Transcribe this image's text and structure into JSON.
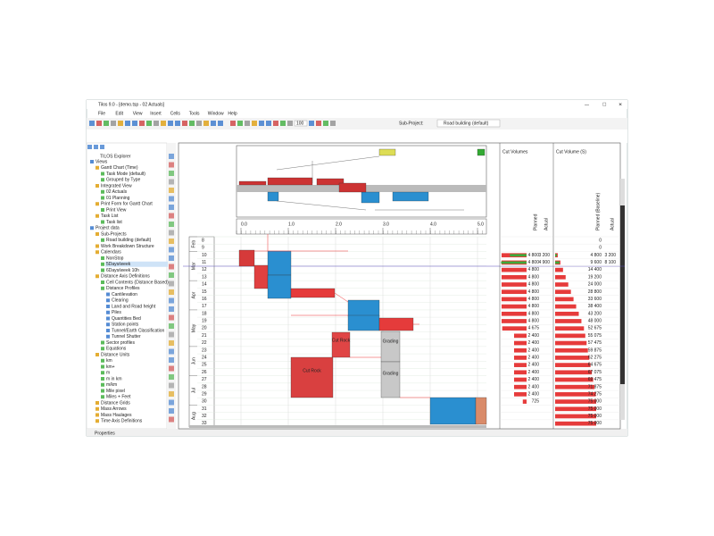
{
  "window": {
    "title": "Tilos 9.0 - [demo.tsp - 02 Actuals]",
    "menu": [
      "File",
      "Edit",
      "View",
      "Insert",
      "Cells",
      "Tools",
      "Window",
      "Help"
    ],
    "toolbar": {
      "zoom": "100",
      "sub_project_label": "Sub-Project:",
      "sub_project": "Road building (default)"
    }
  },
  "explorer": {
    "title": "TILOS Explorer",
    "items": [
      "Views",
      "Gantt Chart (Time)",
      "Task Mode (default)",
      "Grouped by Type",
      "Integrated View",
      "02 Actuals",
      "01 Planning",
      "Print Form for Gantt Chart",
      "Print View",
      "Task List",
      "Task list",
      "Project data",
      "Sub-Projects",
      "Road building (default)",
      "Work Breakdown Structure",
      "Calendars",
      "NonStop",
      "5Days/week",
      "6Days/week 10h",
      "Distance Axis Definitions",
      "Cell Contents (Distance Based)",
      "Distance Profiles",
      "Cantilevation",
      "Clearing",
      "Land and Road height",
      "Piles",
      "Quantities Bed",
      "Station points",
      "Tunnel/Earth Classification",
      "Tunnel Shutter",
      "Sector profiles",
      "Equations",
      "Distance Units",
      "km",
      "km+",
      "m",
      "m in km",
      "m/km",
      "Mile pixel",
      "Miles + Feet",
      "Distance Grids",
      "Mass Arrows",
      "Mass Haulages",
      "Time Axis Definitions"
    ],
    "footer": "Properties"
  },
  "time_distance": {
    "months": [
      "Feb",
      "Mar",
      "Apr",
      "May",
      "Jun",
      "Jul",
      "Aug"
    ],
    "weeks": [
      8,
      9,
      10,
      11,
      12,
      13,
      14,
      15,
      16,
      17,
      18,
      19,
      20,
      21,
      22,
      23,
      24,
      25,
      26,
      27,
      28,
      29,
      30,
      31,
      32,
      33
    ],
    "distance_ticks": [
      "0.0",
      "1.0",
      "2.0",
      "3.0",
      "4.0",
      "5.0"
    ],
    "activities": [
      "Cut Rock",
      "Grading",
      "Grading",
      "Cut Rock"
    ]
  },
  "cut_volumes": {
    "title": "Cut Volumes",
    "columns": [
      "Planned",
      "Actual"
    ],
    "planned": {
      "values": [
        null,
        null,
        4800,
        4800,
        4800,
        4800,
        4800,
        4800,
        4800,
        4800,
        4800,
        4800,
        4675,
        2400,
        2400,
        2400,
        2400,
        2400,
        2400,
        2400,
        2400,
        2400,
        725,
        null,
        null,
        null
      ],
      "value_labels": [
        null,
        null,
        "4 800",
        "4 800",
        "4 800",
        "4 800",
        "4 800",
        "4 800",
        "4 800",
        "4 800",
        "4 800",
        "4 800",
        "4 675",
        "2 400",
        "2 400",
        "2 400",
        "2 400",
        "2 400",
        "2 400",
        "2 400",
        "2 400",
        "2 400",
        "725",
        null,
        null,
        null
      ]
    },
    "actual": {
      "values": [
        null,
        null,
        3200,
        4900,
        null,
        null,
        null,
        null,
        null,
        null,
        null,
        null,
        null,
        null,
        null,
        null,
        null,
        null,
        null,
        null,
        null,
        null,
        null,
        null,
        null,
        null
      ],
      "value_labels": [
        null,
        null,
        "3 200",
        "4 900",
        null,
        null,
        null,
        null,
        null,
        null,
        null,
        null,
        null,
        null,
        null,
        null,
        null,
        null,
        null,
        null,
        null,
        null,
        null,
        null,
        null,
        null
      ]
    }
  },
  "cut_volume_cumulative": {
    "title": "Cut Volume (S)",
    "columns": [
      "Planned (Baseline)",
      "Actual"
    ],
    "planned": {
      "values": [
        0,
        0,
        4800,
        9600,
        14400,
        19200,
        24000,
        28800,
        33600,
        38400,
        43200,
        48000,
        52675,
        55075,
        57475,
        59875,
        62275,
        64675,
        67075,
        69475,
        71875,
        74275,
        75000,
        75000,
        75000,
        75000
      ],
      "value_labels": [
        "0",
        "0",
        "4 800",
        "9 600",
        "14 400",
        "19 200",
        "24 000",
        "28 800",
        "33 600",
        "38 400",
        "43 200",
        "48 000",
        "52 675",
        "55 075",
        "57 475",
        "59 875",
        "62 275",
        "64 675",
        "67 075",
        "69 475",
        "71 875",
        "74 275",
        "75 000",
        "75 000",
        "75 000",
        "75 000"
      ]
    },
    "actual": {
      "values": [
        null,
        null,
        3200,
        8100,
        null,
        null,
        null,
        null,
        null,
        null,
        null,
        null,
        null,
        null,
        null,
        null,
        null,
        null,
        null,
        null,
        null,
        null,
        null,
        null,
        null,
        null
      ],
      "value_labels": [
        null,
        null,
        "3 200",
        "8 100",
        null,
        null,
        null,
        null,
        null,
        null,
        null,
        null,
        null,
        null,
        null,
        null,
        null,
        null,
        null,
        null,
        null,
        null,
        null,
        null,
        null,
        null
      ]
    }
  }
}
